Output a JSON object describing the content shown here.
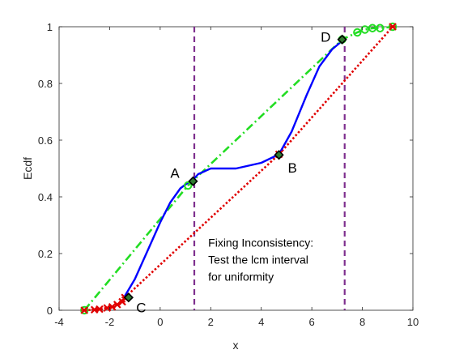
{
  "chart_data": {
    "type": "line",
    "title": "",
    "xlabel": "x",
    "ylabel": "Ecdf",
    "xlim": [
      -4,
      10
    ],
    "ylim": [
      0,
      1
    ],
    "xticks": [
      -4,
      -2,
      0,
      2,
      4,
      6,
      8,
      10
    ],
    "yticks": [
      0,
      0.2,
      0.4,
      0.6,
      0.8,
      1
    ],
    "xtick_labels": [
      "-4",
      "-2",
      "0",
      "2",
      "4",
      "6",
      "8",
      "10"
    ],
    "ytick_labels": [
      "0",
      "0.2",
      "0.4",
      "0.6",
      "0.8",
      "1"
    ],
    "grid": false,
    "series": [
      {
        "id": "ecdf",
        "style": "solid",
        "color": "#0000ff",
        "x": [
          -1.4,
          -1.0,
          -0.5,
          0.0,
          0.4,
          0.8,
          1.1,
          1.3,
          1.5,
          2.0,
          3.0,
          4.0,
          4.7,
          5.2,
          5.8,
          6.3,
          6.8,
          7.2
        ],
        "y": [
          0.05,
          0.11,
          0.21,
          0.31,
          0.38,
          0.43,
          0.45,
          0.46,
          0.48,
          0.5,
          0.5,
          0.52,
          0.55,
          0.63,
          0.76,
          0.86,
          0.92,
          0.95
        ]
      },
      {
        "id": "upper-hull",
        "style": "dash-dot",
        "color": "#22dd22",
        "marker": "circle",
        "x": [
          -3.0,
          1.1,
          7.2,
          7.8,
          8.1,
          8.4,
          8.7,
          9.2
        ],
        "y": [
          0.0,
          0.44,
          0.955,
          0.98,
          0.99,
          0.995,
          0.995,
          1.0
        ]
      },
      {
        "id": "lower-hull",
        "style": "dotted",
        "color": "#e00000",
        "marker": "x",
        "x": [
          -3.0,
          -2.6,
          -2.4,
          -2.1,
          -1.9,
          -1.7,
          -1.5,
          -1.4,
          4.7,
          9.2
        ],
        "y": [
          0.0,
          0.002,
          0.004,
          0.008,
          0.012,
          0.02,
          0.03,
          0.045,
          0.55,
          1.0
        ]
      }
    ],
    "key_points": [
      {
        "label": "A",
        "x": 1.3,
        "y": 0.455,
        "label_dx": -0.9,
        "label_dy": 0.03
      },
      {
        "label": "B",
        "x": 4.7,
        "y": 0.548,
        "label_dx": 0.35,
        "label_dy": -0.045
      },
      {
        "label": "C",
        "x": -1.25,
        "y": 0.045,
        "label_dx": 0.3,
        "label_dy": -0.035
      },
      {
        "label": "D",
        "x": 7.2,
        "y": 0.955,
        "label_dx": -0.85,
        "label_dy": 0.01
      }
    ],
    "vlines": [
      {
        "x": 1.35,
        "color": "#7e2f8e"
      },
      {
        "x": 7.3,
        "color": "#7e2f8e"
      }
    ],
    "annotation": {
      "lines": [
        "Fixing Inconsistency:",
        "Test the lcm interval",
        "for uniformity"
      ],
      "x": 1.9,
      "y": 0.225
    }
  }
}
